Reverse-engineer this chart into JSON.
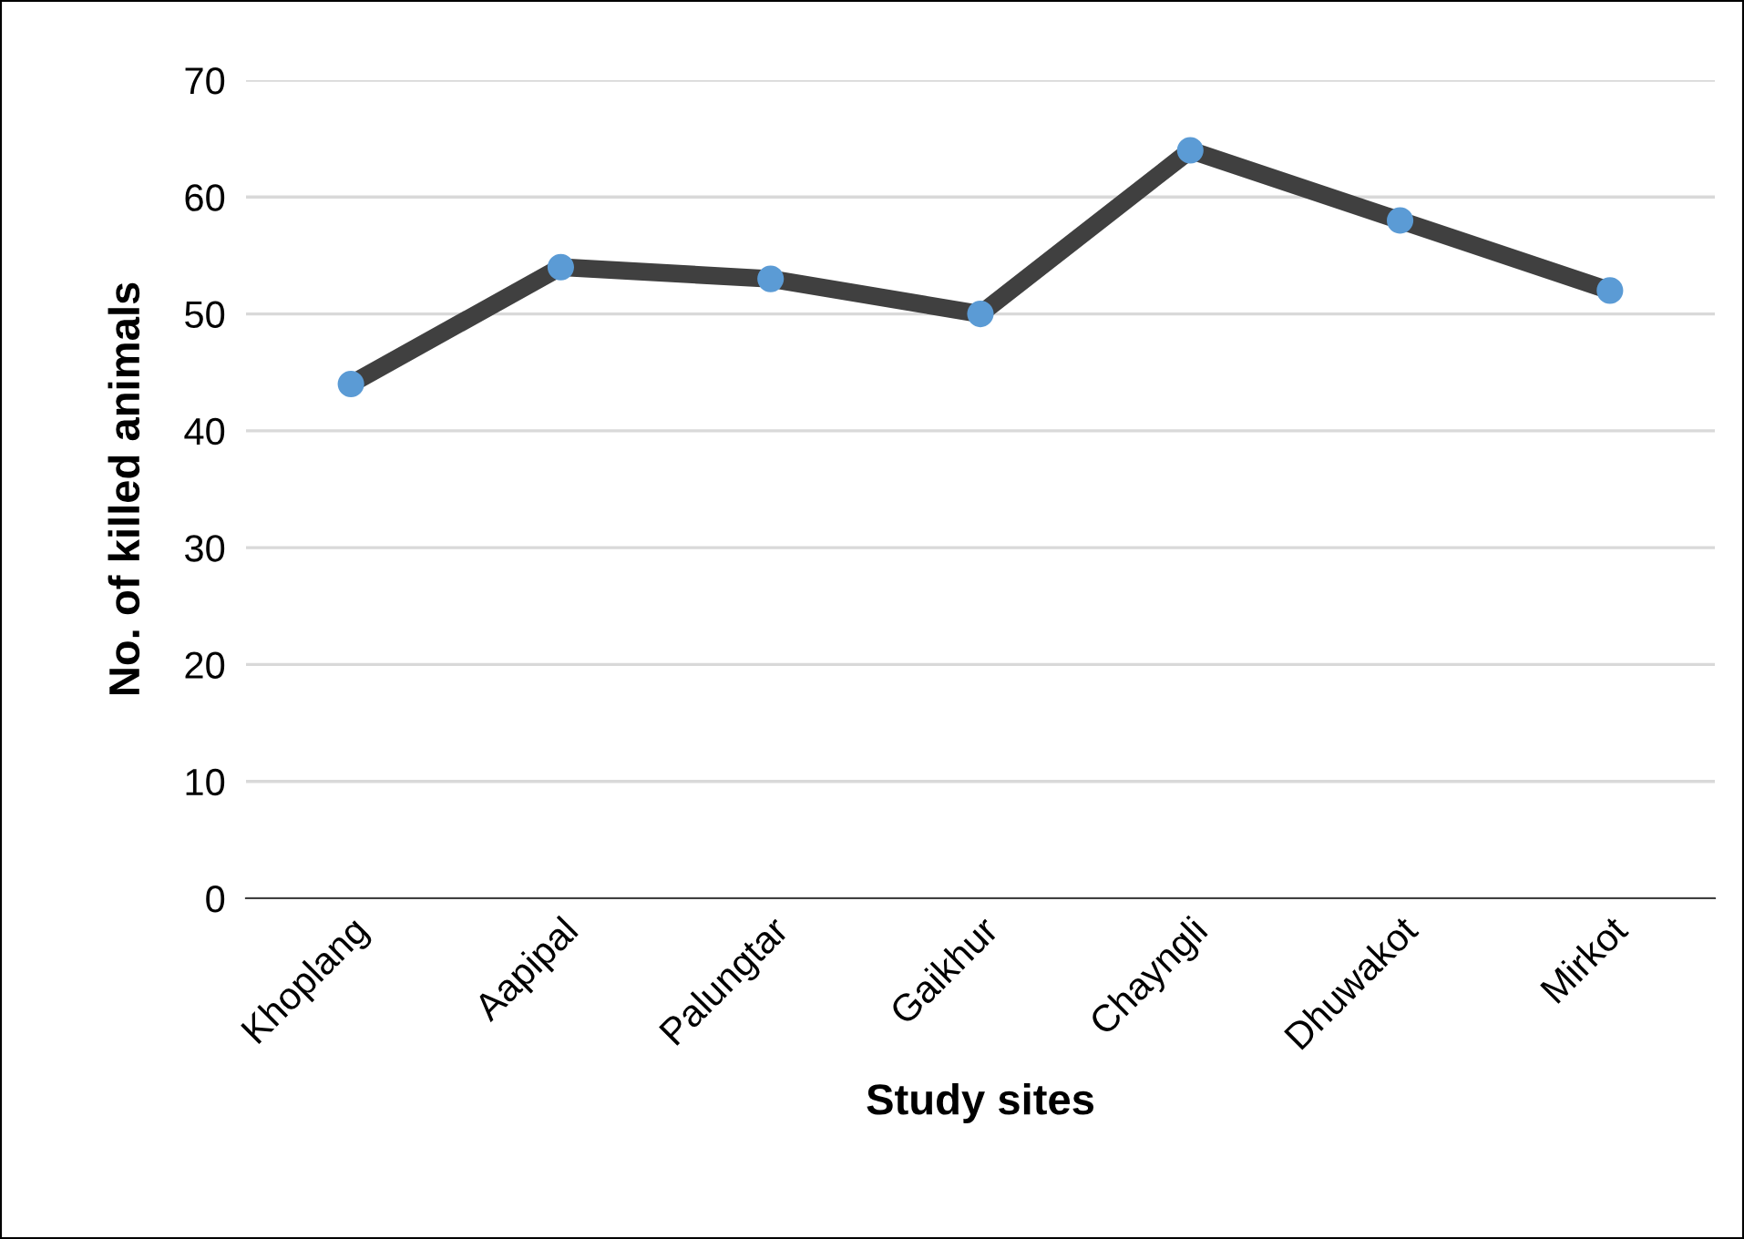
{
  "chart_data": {
    "type": "line",
    "xlabel": "Study sites",
    "ylabel": "No. of killed animals",
    "categories": [
      "Khoplang",
      "Aapipal",
      "Palungtar",
      "Gaikhur",
      "Chayngli",
      "Dhuwakot",
      "Mirkot"
    ],
    "series": [
      {
        "color": "#404040",
        "colors": [
          "#5b9bd5",
          "#5b9bd5",
          "#5b9bd5",
          "#5b9bd5",
          "#5b9bd5",
          "#5b9bd5",
          "#5b9bd5"
        ],
        "values": [
          44,
          54,
          53,
          50,
          64,
          58,
          52
        ]
      }
    ],
    "ylim": [
      0,
      70
    ],
    "yticks": [
      0,
      10,
      20,
      30,
      40,
      50,
      60,
      70
    ],
    "grid": "y",
    "marker": "circle",
    "line_style": "solid",
    "legend": false
  }
}
